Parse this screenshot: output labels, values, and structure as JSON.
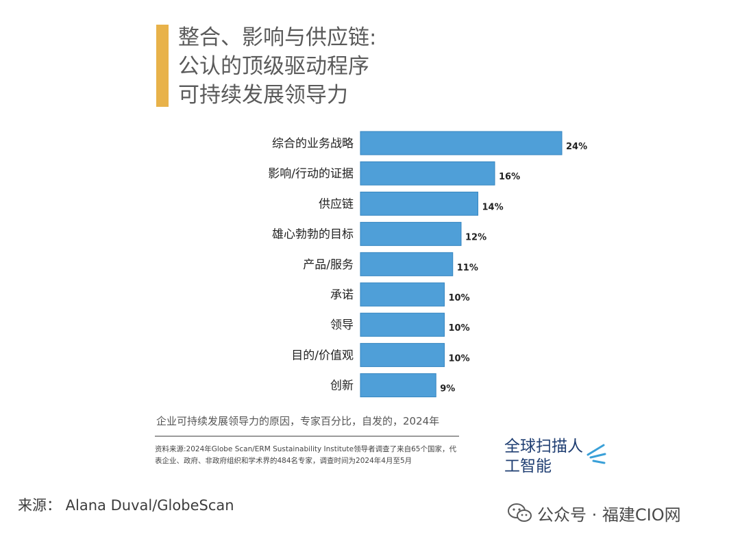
{
  "title": {
    "line1": "整合、影响与供应链:",
    "line2": "公认的顶级驱动程序",
    "line3": "可持续发展领导力"
  },
  "chart_data": {
    "type": "bar",
    "orientation": "horizontal",
    "categories": [
      "综合的业务战略",
      "影响/行动的证据",
      "供应链",
      "雄心勃勃的目标",
      "产品/服务",
      "承诺",
      "领导",
      "目的/价值观",
      "创新"
    ],
    "values": [
      24,
      16,
      14,
      12,
      11,
      10,
      10,
      10,
      9
    ],
    "value_labels": [
      "24%",
      "16%",
      "14%",
      "12%",
      "11%",
      "10%",
      "10%",
      "10%",
      "9%"
    ],
    "unit": "%",
    "bar_color": "#4f9fd8",
    "xlim": [
      0,
      24
    ]
  },
  "caption": "企业可持续发展领导力的原因，专家百分比，自发的，2024年",
  "source_note": "资料来源:2024年Globe Scan/ERM Sustainability Institute领导者调查了来自65个国家，代表企业、政府、非政府组织和学术界的484名专家，调查时间为2024年4月至5月",
  "brand": {
    "line1": "全球扫描人",
    "line2": "工智能",
    "color": "#1f3e72"
  },
  "credit": "来源：  Alana Duval/GlobeScan",
  "watermark": "公众号 · 福建CIO网",
  "accent_color": "#e8b24a"
}
